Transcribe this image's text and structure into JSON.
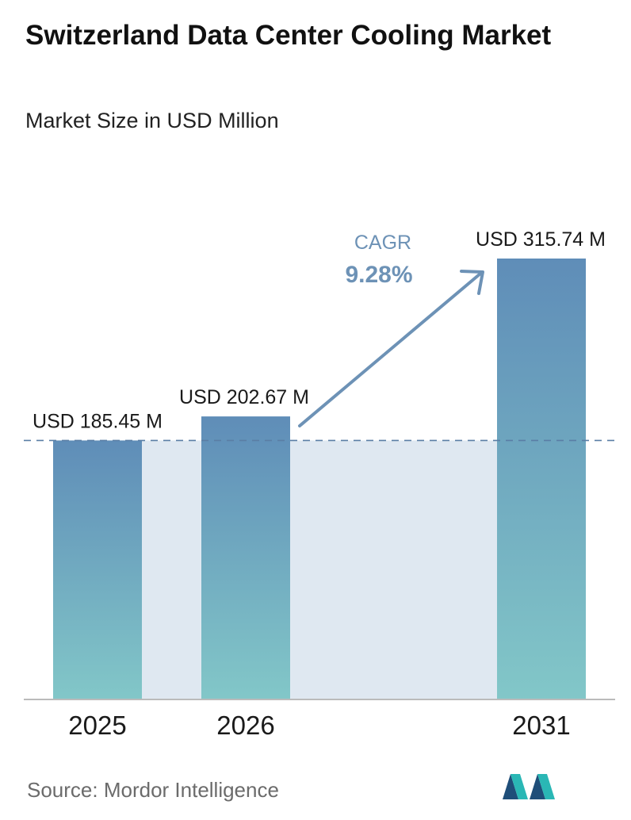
{
  "title": "Switzerland Data Center Cooling Market",
  "subtitle": "Market Size in USD Million",
  "source": "Source:  Mordor Intelligence",
  "logo_icon": "mordor-intelligence-logo",
  "colors": {
    "bar_top": "#5f8db8",
    "bar_bottom": "#82c7c8",
    "band": "#dfe8f1",
    "dashed_line": "#5a7ea5",
    "arrow": "#6d92b6",
    "cagr_text": "#6d92b6",
    "axis": "#bbbbbb"
  },
  "chart_data": {
    "type": "bar",
    "categories": [
      "2025",
      "2026",
      "2031"
    ],
    "values": [
      185.45,
      202.67,
      315.74
    ],
    "value_labels": [
      "USD 185.45 M",
      "USD 202.67 M",
      "USD 315.74 M"
    ],
    "unit": "USD Million",
    "ylim": [
      0,
      315.74
    ],
    "grid": false,
    "legend": "none",
    "reference_line": {
      "value": 185.45,
      "style": "dashed"
    },
    "annotation": {
      "label": "CAGR",
      "value": "9.28%",
      "arrow": "from 2026 to 2031"
    }
  }
}
